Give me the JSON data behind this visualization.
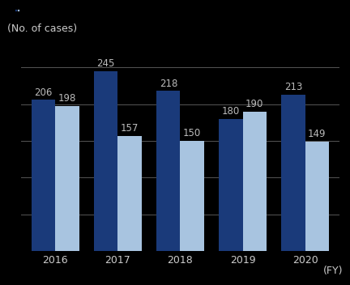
{
  "years": [
    "2016",
    "2017",
    "2018",
    "2019",
    "2020"
  ],
  "series1_values": [
    206,
    245,
    218,
    180,
    213
  ],
  "series2_values": [
    198,
    157,
    150,
    190,
    149
  ],
  "series1_color": "#1a3a7a",
  "series2_color": "#a8c4e0",
  "bar_width": 0.38,
  "ylabel": "(No. of cases)",
  "xlabel_suffix": "(FY)",
  "ylim": [
    0,
    280
  ],
  "value_fontsize": 8.5,
  "axis_fontsize": 9,
  "xtick_fontsize": 9,
  "background_color": "#000000",
  "text_color": "#cccccc",
  "grid_color": "#555555",
  "value_color": "#bbbbbb"
}
